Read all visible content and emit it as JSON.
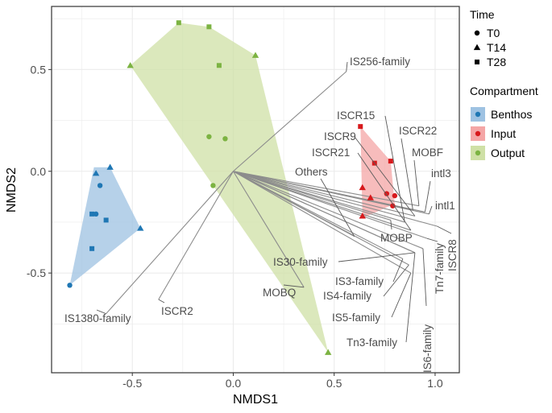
{
  "chart_data": {
    "type": "scatter",
    "title": "",
    "xlabel": "NMDS1",
    "ylabel": "NMDS2",
    "xlim": [
      -0.9,
      1.12
    ],
    "ylim": [
      -0.99,
      0.81
    ],
    "xticks": [
      -0.5,
      0.0,
      0.5,
      1.0
    ],
    "yticks": [
      -0.5,
      0.0,
      0.5
    ],
    "xtick_labels": [
      "-0.5",
      "0.0",
      "0.5",
      "1.0"
    ],
    "ytick_labels": [
      "-0.5",
      "0.0",
      "0.5"
    ],
    "grid": true,
    "legend_position": "right",
    "legend_shape_title": "Time",
    "legend_shapes": [
      {
        "label": "T0",
        "shape": "circle"
      },
      {
        "label": "T14",
        "shape": "triangle"
      },
      {
        "label": "T28",
        "shape": "square"
      }
    ],
    "legend_color_title": "Compartment",
    "compartments": [
      {
        "name": "Benthos",
        "color": "#1f77b4",
        "fill": "#9ec2e2"
      },
      {
        "name": "Input",
        "color": "#d7191c",
        "fill": "#f4a6a6"
      },
      {
        "name": "Output",
        "color": "#7cb342",
        "fill": "#cfe0a6"
      }
    ],
    "hulls": [
      {
        "compartment": "Benthos",
        "points": [
          [
            -0.81,
            -0.56
          ],
          [
            -0.69,
            0.02
          ],
          [
            -0.61,
            0.02
          ],
          [
            -0.46,
            -0.28
          ]
        ]
      },
      {
        "compartment": "Input",
        "points": [
          [
            0.63,
            0.22
          ],
          [
            0.64,
            -0.23
          ],
          [
            0.8,
            -0.16
          ],
          [
            0.78,
            0.05
          ],
          [
            0.7,
            0.14
          ]
        ]
      },
      {
        "compartment": "Output",
        "points": [
          [
            -0.51,
            0.52
          ],
          [
            -0.27,
            0.73
          ],
          [
            -0.12,
            0.71
          ],
          [
            0.11,
            0.57
          ],
          [
            0.47,
            -0.89
          ]
        ]
      }
    ],
    "points": [
      {
        "compartment": "Benthos",
        "shape": "circle",
        "x": -0.81,
        "y": -0.56
      },
      {
        "compartment": "Benthos",
        "shape": "circle",
        "x": -0.66,
        "y": -0.07
      },
      {
        "compartment": "Benthos",
        "shape": "circle",
        "x": -0.68,
        "y": -0.21
      },
      {
        "compartment": "Benthos",
        "shape": "triangle",
        "x": -0.68,
        "y": -0.01
      },
      {
        "compartment": "Benthos",
        "shape": "triangle",
        "x": -0.61,
        "y": 0.02
      },
      {
        "compartment": "Benthos",
        "shape": "triangle",
        "x": -0.46,
        "y": -0.28
      },
      {
        "compartment": "Benthos",
        "shape": "square",
        "x": -0.7,
        "y": -0.21
      },
      {
        "compartment": "Benthos",
        "shape": "square",
        "x": -0.63,
        "y": -0.24
      },
      {
        "compartment": "Benthos",
        "shape": "square",
        "x": -0.7,
        "y": -0.38
      },
      {
        "compartment": "Input",
        "shape": "circle",
        "x": 0.76,
        "y": -0.11
      },
      {
        "compartment": "Input",
        "shape": "circle",
        "x": 0.8,
        "y": -0.12
      },
      {
        "compartment": "Input",
        "shape": "circle",
        "x": 0.79,
        "y": -0.17
      },
      {
        "compartment": "Input",
        "shape": "triangle",
        "x": 0.64,
        "y": -0.08
      },
      {
        "compartment": "Input",
        "shape": "triangle",
        "x": 0.68,
        "y": -0.13
      },
      {
        "compartment": "Input",
        "shape": "triangle",
        "x": 0.64,
        "y": -0.22
      },
      {
        "compartment": "Input",
        "shape": "square",
        "x": 0.63,
        "y": 0.22
      },
      {
        "compartment": "Input",
        "shape": "square",
        "x": 0.7,
        "y": 0.04
      },
      {
        "compartment": "Input",
        "shape": "square",
        "x": 0.78,
        "y": 0.05
      },
      {
        "compartment": "Output",
        "shape": "circle",
        "x": -0.12,
        "y": 0.17
      },
      {
        "compartment": "Output",
        "shape": "circle",
        "x": -0.04,
        "y": 0.16
      },
      {
        "compartment": "Output",
        "shape": "circle",
        "x": -0.1,
        "y": -0.07
      },
      {
        "compartment": "Output",
        "shape": "triangle",
        "x": -0.51,
        "y": 0.52
      },
      {
        "compartment": "Output",
        "shape": "triangle",
        "x": 0.11,
        "y": 0.57
      },
      {
        "compartment": "Output",
        "shape": "triangle",
        "x": 0.47,
        "y": -0.89
      },
      {
        "compartment": "Output",
        "shape": "square",
        "x": -0.27,
        "y": 0.73
      },
      {
        "compartment": "Output",
        "shape": "square",
        "x": -0.12,
        "y": 0.71
      },
      {
        "compartment": "Output",
        "shape": "square",
        "x": -0.07,
        "y": 0.52
      }
    ],
    "vectors": [
      {
        "label": "IS256-family",
        "x": 0.56,
        "y": 0.49
      },
      {
        "label": "IS1380-family",
        "x": -0.63,
        "y": -0.7
      },
      {
        "label": "ISCR2",
        "x": -0.37,
        "y": -0.63
      },
      {
        "label": "MOBQ",
        "x": 0.35,
        "y": -0.57
      },
      {
        "label": "IS30-family",
        "x": 0.9,
        "y": -0.4
      },
      {
        "label": "IS3-family",
        "x": 0.84,
        "y": -0.43
      },
      {
        "label": "IS4-family",
        "x": 0.87,
        "y": -0.46
      },
      {
        "label": "IS5-family",
        "x": 0.88,
        "y": -0.5
      },
      {
        "label": "Tn3-family",
        "x": 0.9,
        "y": -0.4
      },
      {
        "label": "IS6-family",
        "x": 0.94,
        "y": -0.38
      },
      {
        "label": "Tn7-family",
        "x": 0.96,
        "y": -0.33
      },
      {
        "label": "ISCR8",
        "x": 1.01,
        "y": -0.27
      },
      {
        "label": "intl1",
        "x": 0.97,
        "y": -0.21
      },
      {
        "label": "intl3",
        "x": 0.95,
        "y": -0.2
      },
      {
        "label": "MOBF",
        "x": 0.92,
        "y": -0.17
      },
      {
        "label": "ISCR22",
        "x": 0.89,
        "y": -0.19
      },
      {
        "label": "ISCR15",
        "x": 0.85,
        "y": -0.25
      },
      {
        "label": "ISCR9",
        "x": 0.9,
        "y": -0.22
      },
      {
        "label": "ISCR21",
        "x": 0.88,
        "y": -0.29
      },
      {
        "label": "Others",
        "x": 0.6,
        "y": -0.32
      },
      {
        "label": "MOBP",
        "x": 0.78,
        "y": -0.24
      }
    ]
  }
}
